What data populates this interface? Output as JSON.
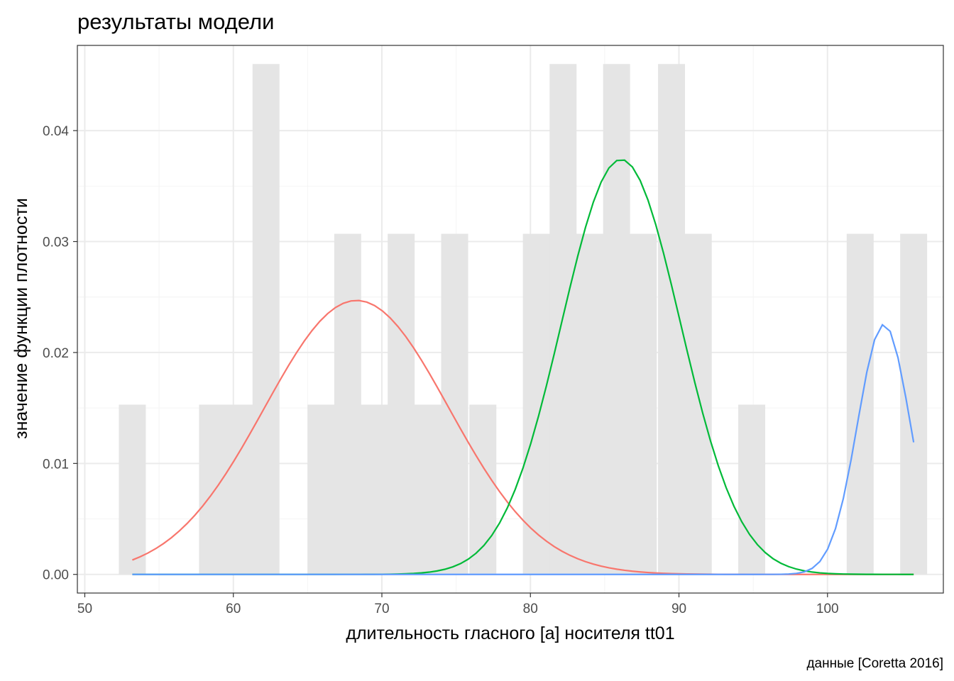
{
  "chart_data": {
    "type": "bar",
    "title": "результаты модели",
    "xlabel": "длительность гласного [a] носителя tt01",
    "ylabel": "значение функции плотности",
    "caption": "данные [Coretta 2016]",
    "xlim": [
      49.5,
      107.8
    ],
    "ylim": [
      -0.00168,
      0.04768
    ],
    "x_ticks": [
      50,
      60,
      70,
      80,
      90,
      100
    ],
    "x_tick_labels": [
      "50",
      "60",
      "70",
      "80",
      "90",
      "100"
    ],
    "y_ticks": [
      0,
      0.01,
      0.02,
      0.03,
      0.04
    ],
    "y_tick_labels": [
      "0.00",
      "0.01",
      "0.02",
      "0.03",
      "0.04"
    ],
    "grid": true,
    "colors": {
      "histogram_fill": "#e5e5e5",
      "grid_major": "#ebebeb",
      "grid_minor": "#f4f4f4",
      "panel_border": "#333333",
      "series": [
        "#f8766d",
        "#00ba38",
        "#619cff"
      ]
    },
    "histogram": {
      "bin_width": 1.815,
      "bins": [
        {
          "x": 53.2,
          "y": 0.0153
        },
        {
          "x": 58.6,
          "y": 0.0153
        },
        {
          "x": 60.4,
          "y": 0.0153
        },
        {
          "x": 62.2,
          "y": 0.046
        },
        {
          "x": 65.9,
          "y": 0.0153
        },
        {
          "x": 67.7,
          "y": 0.0307
        },
        {
          "x": 69.5,
          "y": 0.0153
        },
        {
          "x": 71.3,
          "y": 0.0307
        },
        {
          "x": 73.1,
          "y": 0.0153
        },
        {
          "x": 74.9,
          "y": 0.0307
        },
        {
          "x": 76.8,
          "y": 0.0153
        },
        {
          "x": 80.4,
          "y": 0.0307
        },
        {
          "x": 82.2,
          "y": 0.046
        },
        {
          "x": 84.0,
          "y": 0.0307
        },
        {
          "x": 85.8,
          "y": 0.046
        },
        {
          "x": 87.6,
          "y": 0.0307
        },
        {
          "x": 89.5,
          "y": 0.046
        },
        {
          "x": 91.3,
          "y": 0.0307
        },
        {
          "x": 94.9,
          "y": 0.0153
        },
        {
          "x": 102.2,
          "y": 0.0307
        },
        {
          "x": 105.8,
          "y": 0.0307
        }
      ]
    },
    "series": [
      {
        "mean": 68.3,
        "sd": 6.22,
        "weight": 0.385,
        "x_range": [
          53.2,
          105.8
        ]
      },
      {
        "mean": 86.1,
        "sd": 4.0,
        "weight": 0.375,
        "x_range": [
          53.2,
          105.8
        ]
      },
      {
        "mean": 103.8,
        "sd": 1.77,
        "weight": 0.1,
        "x_range": [
          53.2,
          105.8
        ]
      }
    ]
  }
}
